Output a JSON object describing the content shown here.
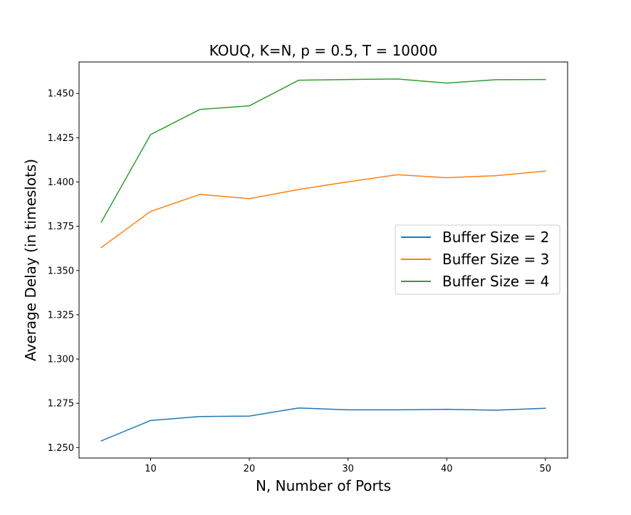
{
  "chart_data": {
    "type": "line",
    "title": "KOUQ, K=N, p = 0.5, T = 10000",
    "xlabel": "N, Number of Ports",
    "ylabel": "Average Delay (in timeslots)",
    "x": [
      5,
      10,
      15,
      20,
      25,
      30,
      35,
      40,
      45,
      50
    ],
    "xlim": [
      2.75,
      52.25
    ],
    "ylim": [
      1.2441,
      1.4678
    ],
    "xticks": [
      10,
      20,
      30,
      40,
      50
    ],
    "yticks": [
      1.25,
      1.275,
      1.3,
      1.325,
      1.35,
      1.375,
      1.4,
      1.425,
      1.45
    ],
    "ytick_labels": [
      "1.250",
      "1.275",
      "1.300",
      "1.325",
      "1.350",
      "1.375",
      "1.400",
      "1.425",
      "1.450"
    ],
    "grid": false,
    "legend_position": "center-right",
    "series": [
      {
        "name": "Buffer Size = 2",
        "color": "#1f77b4",
        "values": [
          1.2538,
          1.2653,
          1.2675,
          1.2678,
          1.2724,
          1.2713,
          1.2713,
          1.2716,
          1.2711,
          1.2722
        ]
      },
      {
        "name": "Buffer Size = 3",
        "color": "#ff7f0e",
        "values": [
          1.363,
          1.3834,
          1.393,
          1.3906,
          1.3958,
          1.4001,
          1.4041,
          1.4024,
          1.4036,
          1.4062
        ]
      },
      {
        "name": "Buffer Size = 4",
        "color": "#2ca02c",
        "values": [
          1.3773,
          1.4268,
          1.441,
          1.443,
          1.4575,
          1.4579,
          1.4582,
          1.4559,
          1.4578,
          1.4579
        ]
      }
    ]
  }
}
